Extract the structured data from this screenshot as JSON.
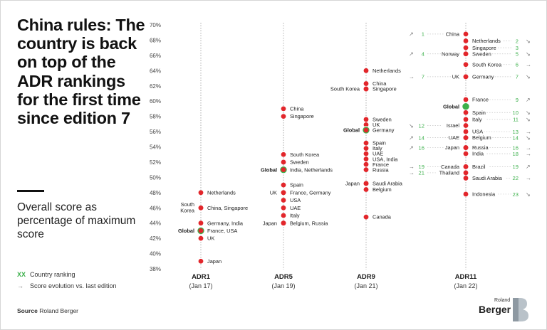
{
  "title": "China rules: The country is back on top of the ADR rankings for the first time since edition 7",
  "subtitle": "Overall score as percentage of maximum score",
  "legend": {
    "ranking_key": "XX",
    "ranking_text": "Country ranking",
    "evolution_text": "Score evolution vs. last edition"
  },
  "source": {
    "label": "Source",
    "text": "Roland Berger"
  },
  "logo": {
    "roland": "Roland",
    "berger": "Berger"
  },
  "colors": {
    "dot": "#e2262b",
    "global": "#3cb04b",
    "rank": "#3cb04b",
    "arrow": "#777777",
    "text": "#222222"
  },
  "chart_data": {
    "type": "scatter",
    "ylabel": "",
    "ylim": [
      38,
      70
    ],
    "yticks": [
      "38%",
      "40%",
      "42%",
      "44%",
      "46%",
      "48%",
      "50%",
      "52%",
      "54%",
      "56%",
      "58%",
      "60%",
      "62%",
      "64%",
      "66%",
      "68%",
      "70%"
    ],
    "grid": false,
    "columns": [
      {
        "name": "ADR1",
        "date": "(Jan 17)",
        "points": [
          {
            "country": "Netherlands",
            "value": 48.0,
            "side": "right"
          },
          {
            "country": "South Korea",
            "value": 46.0,
            "side": "left"
          },
          {
            "country": "China, Singapore",
            "value": 46.0,
            "side": "right"
          },
          {
            "country": "Germany, India",
            "value": 44.0,
            "side": "right"
          },
          {
            "country": "Global",
            "value": 43.0,
            "side": "left",
            "global": true
          },
          {
            "country": "France, USA",
            "value": 43.0,
            "side": "right"
          },
          {
            "country": "UK",
            "value": 42.0,
            "side": "right"
          },
          {
            "country": "Japan",
            "value": 39.0,
            "side": "right"
          }
        ]
      },
      {
        "name": "ADR5",
        "date": "(Jan 19)",
        "points": [
          {
            "country": "China",
            "value": 59.0,
            "side": "right"
          },
          {
            "country": "Singapore",
            "value": 58.0,
            "side": "right"
          },
          {
            "country": "South Korea",
            "value": 53.0,
            "side": "right"
          },
          {
            "country": "Sweden",
            "value": 52.0,
            "side": "right"
          },
          {
            "country": "Global",
            "value": 51.0,
            "side": "left",
            "global": true
          },
          {
            "country": "India, Netherlands",
            "value": 51.0,
            "side": "right"
          },
          {
            "country": "Spain",
            "value": 49.0,
            "side": "right"
          },
          {
            "country": "UK",
            "value": 48.0,
            "side": "left"
          },
          {
            "country": "France, Germany",
            "value": 48.0,
            "side": "right"
          },
          {
            "country": "USA",
            "value": 47.0,
            "side": "right"
          },
          {
            "country": "UAE",
            "value": 46.0,
            "side": "right"
          },
          {
            "country": "Italy",
            "value": 45.0,
            "side": "right"
          },
          {
            "country": "Japan",
            "value": 44.0,
            "side": "left"
          },
          {
            "country": "Belgium, Russia",
            "value": 44.0,
            "side": "right"
          }
        ]
      },
      {
        "name": "ADR9",
        "date": "(Jan 21)",
        "points": [
          {
            "country": "Netherlands",
            "value": 64.0,
            "side": "right"
          },
          {
            "country": "China",
            "value": 62.3,
            "side": "right"
          },
          {
            "country": "South Korea",
            "value": 61.6,
            "side": "left"
          },
          {
            "country": "Singapore",
            "value": 61.6,
            "side": "right"
          },
          {
            "country": "Sweden",
            "value": 57.6,
            "side": "right"
          },
          {
            "country": "UK",
            "value": 56.9,
            "side": "right"
          },
          {
            "country": "Global",
            "value": 56.2,
            "side": "left",
            "global": true
          },
          {
            "country": "Germany",
            "value": 56.2,
            "side": "right"
          },
          {
            "country": "Spain",
            "value": 54.5,
            "side": "right"
          },
          {
            "country": "Italy",
            "value": 53.8,
            "side": "right"
          },
          {
            "country": "UAE",
            "value": 53.1,
            "side": "right"
          },
          {
            "country": "USA, India",
            "value": 52.4,
            "side": "right"
          },
          {
            "country": "France",
            "value": 51.7,
            "side": "right"
          },
          {
            "country": "Russia",
            "value": 51.0,
            "side": "right"
          },
          {
            "country": "Japan",
            "value": 49.2,
            "side": "left"
          },
          {
            "country": "Saudi Arabia",
            "value": 49.2,
            "side": "right"
          },
          {
            "country": "Belgium",
            "value": 48.4,
            "side": "right"
          },
          {
            "country": "Canada",
            "value": 44.8,
            "side": "right"
          }
        ]
      },
      {
        "name": "ADR11",
        "date": "(Jan 22)",
        "points": [
          {
            "country": "China",
            "value": 68.8,
            "side": "left",
            "rank": "1",
            "trend": "up"
          },
          {
            "country": "Netherlands",
            "value": 67.9,
            "side": "right",
            "rank": "2",
            "trend": "down"
          },
          {
            "country": "Singapore",
            "value": 67.0,
            "side": "right",
            "rank": "3",
            "trend": ""
          },
          {
            "country": "Norway",
            "value": 66.2,
            "side": "left",
            "rank": "4",
            "trend": "up"
          },
          {
            "country": "Sweden",
            "value": 66.2,
            "side": "right",
            "rank": "5",
            "trend": "down"
          },
          {
            "country": "South Korea",
            "value": 64.8,
            "side": "right",
            "rank": "6",
            "trend": "right"
          },
          {
            "country": "UK",
            "value": 63.2,
            "side": "left",
            "rank": "7",
            "trend": "right"
          },
          {
            "country": "Germany",
            "value": 63.2,
            "side": "right",
            "rank": "7",
            "trend": "down"
          },
          {
            "country": "France",
            "value": 60.2,
            "side": "right",
            "rank": "9",
            "trend": "up"
          },
          {
            "country": "Global",
            "value": 59.3,
            "side": "left",
            "global": true
          },
          {
            "country": "Spain",
            "value": 58.5,
            "side": "right",
            "rank": "10",
            "trend": "down"
          },
          {
            "country": "Italy",
            "value": 57.6,
            "side": "right",
            "rank": "11",
            "trend": "down"
          },
          {
            "country": "Israel",
            "value": 56.8,
            "side": "left",
            "rank": "12",
            "trend": "down"
          },
          {
            "country": "USA",
            "value": 56.0,
            "side": "right",
            "rank": "13",
            "trend": "right"
          },
          {
            "country": "UAE",
            "value": 55.2,
            "side": "left",
            "rank": "14",
            "trend": "up"
          },
          {
            "country": "Belgium",
            "value": 55.2,
            "side": "right",
            "rank": "14",
            "trend": "down"
          },
          {
            "country": "Japan",
            "value": 53.9,
            "side": "left",
            "rank": "16",
            "trend": "up"
          },
          {
            "country": "Russia",
            "value": 53.9,
            "side": "right",
            "rank": "16",
            "trend": "right"
          },
          {
            "country": "India",
            "value": 53.1,
            "side": "right",
            "rank": "18",
            "trend": "right"
          },
          {
            "country": "Canada",
            "value": 51.4,
            "side": "left",
            "rank": "19",
            "trend": "right"
          },
          {
            "country": "Brazil",
            "value": 51.4,
            "side": "right",
            "rank": "19",
            "trend": "up"
          },
          {
            "country": "Thailand",
            "value": 50.6,
            "side": "left",
            "rank": "21",
            "trend": "right"
          },
          {
            "country": "Saudi Arabia",
            "value": 49.9,
            "side": "right",
            "rank": "22",
            "trend": "right"
          },
          {
            "country": "Indonesia",
            "value": 47.8,
            "side": "right",
            "rank": "23",
            "trend": "down"
          }
        ]
      }
    ]
  }
}
